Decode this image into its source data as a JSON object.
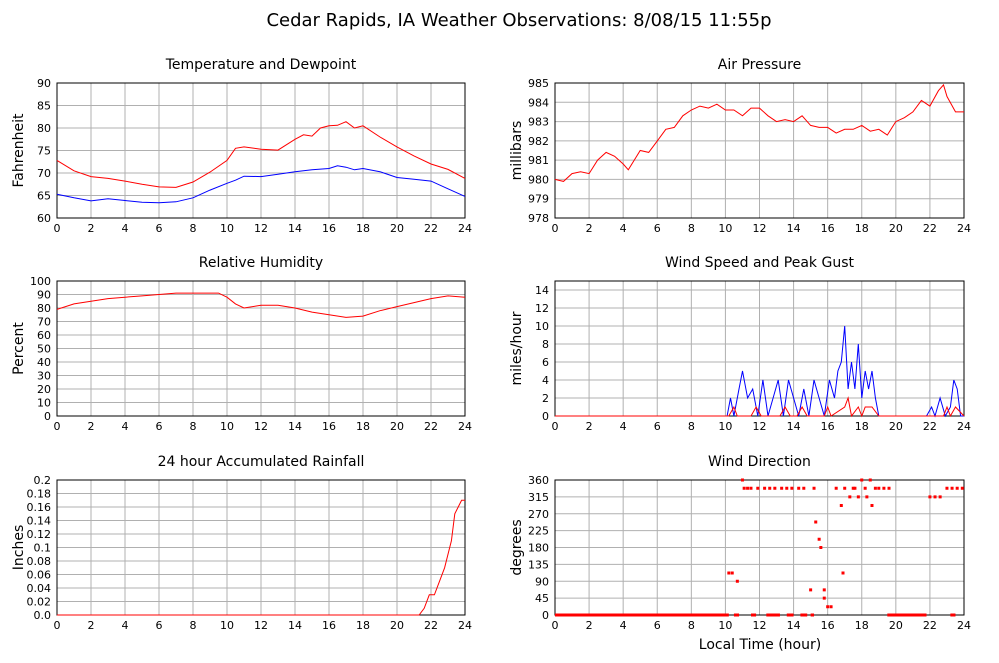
{
  "page": {
    "title": "Cedar Rapids, IA Weather Observations: 8/08/15 11:55p",
    "xaxis_label": "Local Time (hour)"
  },
  "colors": {
    "red": "#ff0000",
    "blue": "#0000ff",
    "grid": "#b0b0b0",
    "frame": "#000000"
  },
  "chart_data": [
    {
      "id": "temp",
      "type": "line",
      "title": "Temperature and Dewpoint",
      "xlabel": "",
      "ylabel": "Fahrenheit",
      "xlim": [
        0,
        24
      ],
      "ylim": [
        60,
        90
      ],
      "xticks": [
        0,
        2,
        4,
        6,
        8,
        10,
        12,
        14,
        16,
        18,
        20,
        22,
        24
      ],
      "yticks": [
        60,
        65,
        70,
        75,
        80,
        85,
        90
      ],
      "grid": true,
      "series": [
        {
          "color": "#ff0000",
          "x": [
            0,
            1,
            2,
            3,
            4,
            5,
            6,
            7,
            8,
            9,
            10,
            10.5,
            11,
            12,
            13,
            14,
            14.5,
            15,
            15.5,
            16,
            16.5,
            17,
            17.5,
            18,
            19,
            20,
            21,
            22,
            23,
            24
          ],
          "y": [
            72.8,
            70.5,
            69.2,
            68.8,
            68.2,
            67.5,
            66.9,
            66.8,
            68.0,
            70.2,
            72.8,
            75.5,
            75.8,
            75.3,
            75.1,
            77.5,
            78.5,
            78.2,
            80.0,
            80.5,
            80.6,
            81.4,
            80.0,
            80.5,
            78.0,
            75.8,
            73.8,
            72.0,
            70.8,
            68.8
          ]
        },
        {
          "color": "#0000ff",
          "x": [
            0,
            1,
            2,
            3,
            4,
            5,
            6,
            7,
            8,
            9,
            10,
            10.5,
            11,
            12,
            13,
            14,
            15,
            16,
            16.5,
            17,
            17.5,
            18,
            19,
            20,
            21,
            22,
            23,
            24
          ],
          "y": [
            65.3,
            64.5,
            63.8,
            64.3,
            63.9,
            63.5,
            63.4,
            63.6,
            64.5,
            66.2,
            67.7,
            68.4,
            69.3,
            69.2,
            69.7,
            70.3,
            70.7,
            71.0,
            71.6,
            71.3,
            70.7,
            71.0,
            70.3,
            69.0,
            68.6,
            68.2,
            66.5,
            64.8
          ]
        }
      ]
    },
    {
      "id": "pressure",
      "type": "line",
      "title": "Air Pressure",
      "xlabel": "",
      "ylabel": "millibars",
      "xlim": [
        0,
        24
      ],
      "ylim": [
        978,
        985
      ],
      "xticks": [
        0,
        2,
        4,
        6,
        8,
        10,
        12,
        14,
        16,
        18,
        20,
        22,
        24
      ],
      "yticks": [
        978,
        979,
        980,
        981,
        982,
        983,
        984,
        985
      ],
      "grid": true,
      "series": [
        {
          "color": "#ff0000",
          "x": [
            0,
            0.5,
            1,
            1.5,
            2,
            2.5,
            3,
            3.5,
            4,
            4.3,
            5,
            5.5,
            6,
            6.5,
            7,
            7.5,
            8,
            8.5,
            9,
            9.5,
            10,
            10.5,
            11,
            11.5,
            12,
            12.5,
            13,
            13.5,
            14,
            14.5,
            15,
            15.5,
            16,
            16.5,
            17,
            17.5,
            18,
            18.5,
            19,
            19.5,
            20,
            20.5,
            21,
            21.5,
            22,
            22.5,
            22.8,
            23,
            23.5,
            24
          ],
          "y": [
            980.0,
            979.9,
            980.3,
            980.4,
            980.3,
            981.0,
            981.4,
            981.2,
            980.8,
            980.5,
            981.5,
            981.4,
            982.0,
            982.6,
            982.7,
            983.3,
            983.6,
            983.8,
            983.7,
            983.9,
            983.6,
            983.6,
            983.3,
            983.7,
            983.7,
            983.3,
            983.0,
            983.1,
            983.0,
            983.3,
            982.8,
            982.7,
            982.7,
            982.4,
            982.6,
            982.6,
            982.8,
            982.5,
            982.6,
            982.3,
            983.0,
            983.2,
            983.5,
            984.1,
            983.8,
            984.6,
            984.9,
            984.3,
            983.5,
            983.5
          ]
        }
      ]
    },
    {
      "id": "humidity",
      "type": "line",
      "title": "Relative Humidity",
      "xlabel": "",
      "ylabel": "Percent",
      "xlim": [
        0,
        24
      ],
      "ylim": [
        0,
        100
      ],
      "xticks": [
        0,
        2,
        4,
        6,
        8,
        10,
        12,
        14,
        16,
        18,
        20,
        22,
        24
      ],
      "yticks": [
        0,
        10,
        20,
        30,
        40,
        50,
        60,
        70,
        80,
        90,
        100
      ],
      "grid": true,
      "series": [
        {
          "color": "#ff0000",
          "x": [
            0,
            1,
            2,
            3,
            4,
            5,
            6,
            7,
            8,
            9,
            9.5,
            10,
            10.5,
            11,
            12,
            13,
            14,
            15,
            16,
            17,
            18,
            19,
            20,
            21,
            22,
            23,
            24
          ],
          "y": [
            79,
            83,
            85,
            87,
            88,
            89,
            90,
            91,
            91,
            91,
            91,
            88,
            83,
            80,
            82,
            82,
            80,
            77,
            75,
            73,
            74,
            78,
            81,
            84,
            87,
            89,
            88
          ]
        }
      ]
    },
    {
      "id": "wind",
      "type": "line",
      "title": "Wind Speed and Peak Gust",
      "xlabel": "",
      "ylabel": "miles/hour",
      "xlim": [
        0,
        24
      ],
      "ylim": [
        0,
        15
      ],
      "xticks": [
        0,
        2,
        4,
        6,
        8,
        10,
        12,
        14,
        16,
        18,
        20,
        22,
        24
      ],
      "yticks": [
        0,
        2,
        4,
        6,
        8,
        10,
        12,
        14
      ],
      "grid": true,
      "series": [
        {
          "color": "#0000ff",
          "x": [
            0,
            10.1,
            10.3,
            10.5,
            10.8,
            11.0,
            11.3,
            11.6,
            11.9,
            12.2,
            12.5,
            12.8,
            13.1,
            13.4,
            13.7,
            14.0,
            14.3,
            14.6,
            14.9,
            15.2,
            15.5,
            15.8,
            16.1,
            16.4,
            16.6,
            16.8,
            17.0,
            17.2,
            17.4,
            17.6,
            17.8,
            18.0,
            18.2,
            18.4,
            18.6,
            18.8,
            19.0,
            19.5,
            21.8,
            22.1,
            22.3,
            22.6,
            22.9,
            23.2,
            23.4,
            23.6,
            23.8,
            24
          ],
          "y": [
            0,
            0,
            2,
            0,
            3,
            5,
            2,
            3,
            0,
            4,
            0,
            2,
            4,
            0,
            4,
            2,
            0,
            3,
            0,
            4,
            2,
            0,
            4,
            2,
            5,
            6,
            10,
            3,
            6,
            3,
            8,
            2,
            5,
            3,
            5,
            2,
            0,
            0,
            0,
            1,
            0,
            2,
            0,
            1,
            4,
            3,
            0,
            0
          ]
        },
        {
          "color": "#ff0000",
          "x": [
            0,
            10.2,
            10.5,
            10.7,
            11.5,
            11.8,
            12.1,
            13.2,
            13.5,
            13.8,
            14.2,
            14.5,
            14.8,
            15.8,
            16.0,
            16.2,
            17.0,
            17.2,
            17.4,
            17.8,
            18.0,
            18.2,
            18.4,
            18.6,
            19.0,
            22.8,
            23.0,
            23.2,
            23.5,
            24
          ],
          "y": [
            0,
            0,
            1,
            0,
            0,
            1,
            0,
            0,
            1,
            0,
            0,
            1,
            0,
            0,
            1,
            0,
            1,
            2,
            0,
            1,
            0,
            1,
            1,
            1,
            0,
            0,
            1,
            0,
            1,
            0
          ]
        }
      ]
    },
    {
      "id": "rain",
      "type": "line",
      "title": "24 hour Accumulated Rainfall",
      "xlabel": "",
      "ylabel": "Inches",
      "xlim": [
        0,
        24
      ],
      "ylim": [
        0,
        0.2
      ],
      "xticks": [
        0,
        2,
        4,
        6,
        8,
        10,
        12,
        14,
        16,
        18,
        20,
        22,
        24
      ],
      "yticks": [
        0.0,
        0.02,
        0.04,
        0.06,
        0.08,
        0.1,
        0.12,
        0.14,
        0.16,
        0.18,
        0.2
      ],
      "ytick_labels": [
        "0.0",
        "0.02",
        "0.04",
        "0.06",
        "0.08",
        "0.1",
        "0.12",
        "0.14",
        "0.16",
        "0.18",
        "0.2"
      ],
      "grid": true,
      "series": [
        {
          "color": "#ff0000",
          "x": [
            0,
            21.3,
            21.6,
            21.9,
            22.2,
            22.5,
            22.8,
            23.0,
            23.2,
            23.4,
            23.6,
            23.8,
            24
          ],
          "y": [
            0,
            0,
            0.01,
            0.03,
            0.03,
            0.05,
            0.07,
            0.09,
            0.11,
            0.15,
            0.16,
            0.17,
            0.17
          ]
        }
      ]
    },
    {
      "id": "direction",
      "type": "scatter",
      "title": "Wind Direction",
      "xlabel": "Local Time (hour)",
      "ylabel": "degrees",
      "xlim": [
        0,
        24
      ],
      "ylim": [
        0,
        360
      ],
      "xticks": [
        0,
        2,
        4,
        6,
        8,
        10,
        12,
        14,
        16,
        18,
        20,
        22,
        24
      ],
      "yticks": [
        0,
        45,
        90,
        135,
        180,
        225,
        270,
        315,
        360
      ],
      "grid": true,
      "series": [
        {
          "color": "#ff0000",
          "zero_runs": [
            [
              0,
              10.2
            ],
            [
              10.5,
              10.8
            ],
            [
              11.5,
              11.8
            ],
            [
              12.4,
              13.2
            ],
            [
              13.6,
              14.0
            ],
            [
              14.4,
              14.8
            ],
            [
              15.0,
              15.2
            ],
            [
              19.5,
              21.8
            ],
            [
              23.2,
              23.5
            ]
          ],
          "x": [
            10.2,
            10.4,
            10.7,
            11.0,
            11.1,
            11.3,
            11.5,
            11.9,
            12.3,
            12.6,
            12.9,
            13.3,
            13.6,
            13.9,
            14.3,
            14.6,
            15.0,
            15.2,
            15.3,
            15.5,
            15.6,
            15.8,
            15.8,
            16.0,
            16.2,
            16.5,
            16.8,
            16.9,
            17.0,
            17.3,
            17.5,
            17.6,
            17.8,
            18.0,
            18.2,
            18.3,
            18.5,
            18.6,
            18.8,
            19.0,
            19.3,
            19.6,
            22.0,
            22.3,
            22.6,
            23.0,
            23.3,
            23.6,
            23.9
          ],
          "y": [
            112,
            112,
            90,
            360,
            338,
            338,
            338,
            338,
            338,
            338,
            338,
            338,
            338,
            338,
            338,
            338,
            67,
            338,
            248,
            202,
            180,
            67,
            45,
            22,
            22,
            338,
            292,
            112,
            338,
            315,
            338,
            338,
            315,
            360,
            338,
            315,
            360,
            292,
            338,
            338,
            338,
            338,
            315,
            315,
            315,
            338,
            338,
            338,
            338
          ]
        }
      ]
    }
  ]
}
